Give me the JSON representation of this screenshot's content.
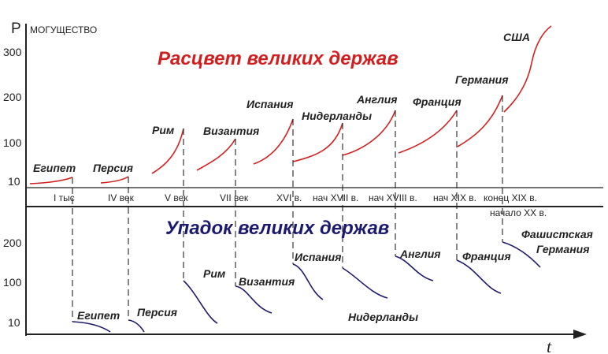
{
  "colors": {
    "rise": "#d11f1f",
    "decline": "#1c1a6e",
    "axis": "#222222",
    "dash": "#222222"
  },
  "top": {
    "title": "Расцвет великих держав",
    "axis_letter": "P",
    "axis_label": "МОГУЩЕСТВО",
    "y_ticks": [
      "300",
      "200",
      "100",
      "10"
    ],
    "x_ticks": [
      "I тыс",
      "IV век",
      "V век",
      "VII век",
      "XVI в.",
      "нач XVII в.",
      "нач XVIII в.",
      "нач XIX в.",
      "конец XIX в."
    ],
    "x_tick_extra": "начало XX в.",
    "powers": [
      "Египет",
      "Персия",
      "Рим",
      "Византия",
      "Испания",
      "Нидерланды",
      "Англия",
      "Франция",
      "Германия",
      "США"
    ]
  },
  "bottom": {
    "title": "Упадок великих держав",
    "axis_letter": "t",
    "y_ticks": [
      "200",
      "100",
      "10"
    ],
    "powers": [
      "Египет",
      "Персия",
      "Рим",
      "Византия",
      "Испания",
      "Нидерланды",
      "Англия",
      "Франция",
      "Фашистская",
      "Германия"
    ]
  }
}
